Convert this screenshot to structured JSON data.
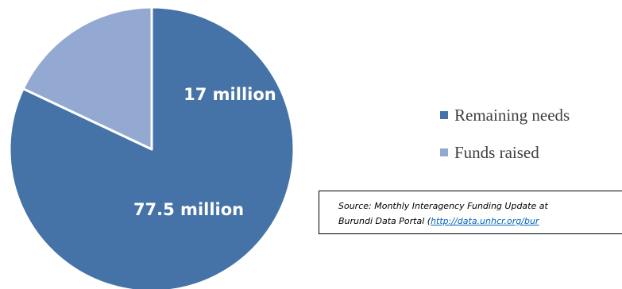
{
  "chart_data": {
    "type": "pie",
    "categories": [
      "Remaining needs",
      "Funds raised"
    ],
    "values": [
      77.5,
      17
    ],
    "data_labels": [
      "77.5 million",
      "17 million"
    ],
    "colors": [
      "#4572a7",
      "#93a9d2"
    ],
    "legend_position": "right"
  },
  "source": {
    "line1": "Source: Monthly Interagency Funding Update at",
    "line2_prefix": "Burundi Data Portal (",
    "link_text": "http://data.unhcr.org/bur"
  }
}
